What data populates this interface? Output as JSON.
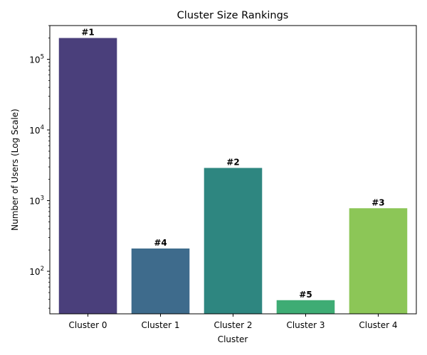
{
  "chart_data": {
    "type": "bar",
    "title": "Cluster Size Rankings",
    "xlabel": "Cluster",
    "ylabel": "Number of Users (Log Scale)",
    "yscale": "log",
    "ylim": [
      25,
      300000
    ],
    "y_tick_labels": [
      {
        "value": 100,
        "base": "10",
        "exp": "2"
      },
      {
        "value": 1000,
        "base": "10",
        "exp": "3"
      },
      {
        "value": 10000,
        "base": "10",
        "exp": "4"
      },
      {
        "value": 100000,
        "base": "10",
        "exp": "5"
      }
    ],
    "categories": [
      "Cluster 0",
      "Cluster 1",
      "Cluster 2",
      "Cluster 3",
      "Cluster 4"
    ],
    "values": [
      200000,
      210,
      2900,
      39,
      780
    ],
    "rank_labels": [
      "#1",
      "#4",
      "#2",
      "#5",
      "#3"
    ],
    "colors": [
      "#4a3f7b",
      "#3e6b8c",
      "#2e8680",
      "#3eac74",
      "#8cc657"
    ],
    "grid": false,
    "legend": "none"
  }
}
